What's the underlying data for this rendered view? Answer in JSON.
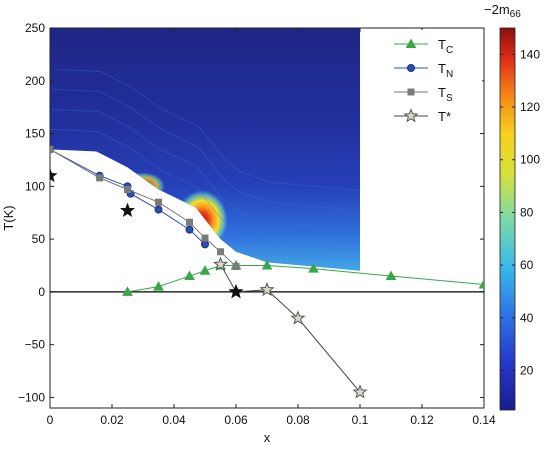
{
  "chart_data": {
    "type": "line",
    "title": "",
    "xlabel": "x",
    "ylabel": "T(K)",
    "xlim": [
      0,
      0.14
    ],
    "ylim": [
      -110,
      250
    ],
    "xticks": [
      0,
      0.02,
      0.04,
      0.06,
      0.08,
      0.1,
      0.12,
      0.14
    ],
    "xtick_labels": [
      "0",
      "0.02",
      "0.04",
      "0.06",
      "0.08",
      "0.1",
      "0.12",
      "0.14"
    ],
    "yticks": [
      -100,
      -50,
      0,
      50,
      100,
      150,
      200,
      250
    ],
    "ytick_labels": [
      "−100",
      "−50",
      "0",
      "50",
      "100",
      "150",
      "200",
      "250"
    ],
    "legend": {
      "placement": "top-right"
    },
    "series": [
      {
        "name": "T_C",
        "label_main": "T",
        "label_sub": "C",
        "color": "#3aa64a",
        "marker": "triangle",
        "x": [
          0.025,
          0.035,
          0.045,
          0.05,
          0.055,
          0.06,
          0.07,
          0.085,
          0.11,
          0.14
        ],
        "y": [
          0,
          5,
          15,
          20,
          25,
          25,
          25,
          22,
          15,
          7
        ]
      },
      {
        "name": "T_N",
        "label_main": "T",
        "label_sub": "N",
        "color": "#2f4fb0",
        "marker": "circle",
        "x": [
          0,
          0.016,
          0.025,
          0.026,
          0.035,
          0.045,
          0.05
        ],
        "y": [
          135,
          110,
          100,
          93,
          78,
          59,
          45
        ]
      },
      {
        "name": "T_S",
        "label_main": "T",
        "label_sub": "S",
        "color": "#7a7a7a",
        "marker": "square",
        "x": [
          0,
          0.016,
          0.025,
          0.035,
          0.045,
          0.05,
          0.055,
          0.06
        ],
        "y": [
          135,
          108,
          97,
          85,
          66,
          51,
          38,
          24
        ]
      },
      {
        "name": "T*",
        "label_main": "T*",
        "label_sub": "",
        "color": "#444444",
        "marker": "star",
        "x": [
          0.055,
          0.06,
          0.07,
          0.08,
          0.1
        ],
        "y": [
          26,
          0,
          2,
          -25,
          -95
        ]
      },
      {
        "name": "",
        "label_main": "",
        "label_sub": "",
        "color": "#333333",
        "marker": "star-filled",
        "x": [
          0,
          0.025,
          0.06
        ],
        "y": [
          110,
          77,
          0
        ],
        "in_legend": false
      }
    ],
    "heatmap": {
      "description_free": true,
      "x_range": [
        0,
        0.1
      ],
      "y_max": 250,
      "lower_boundary": {
        "x": [
          0,
          0.015,
          0.025,
          0.035,
          0.047,
          0.055,
          0.06,
          0.07,
          0.1
        ],
        "y": [
          135,
          133,
          118,
          97,
          80,
          50,
          38,
          28,
          20
        ]
      },
      "color_scale": "jet",
      "value_range": [
        5,
        150
      ]
    },
    "colorbar": {
      "label": "−2m",
      "label_sub": "66",
      "ticks": [
        20,
        40,
        60,
        80,
        100,
        120,
        140
      ],
      "tick_labels": [
        "20",
        "40",
        "60",
        "80",
        "100",
        "120",
        "140"
      ],
      "range": [
        5,
        150
      ]
    }
  }
}
